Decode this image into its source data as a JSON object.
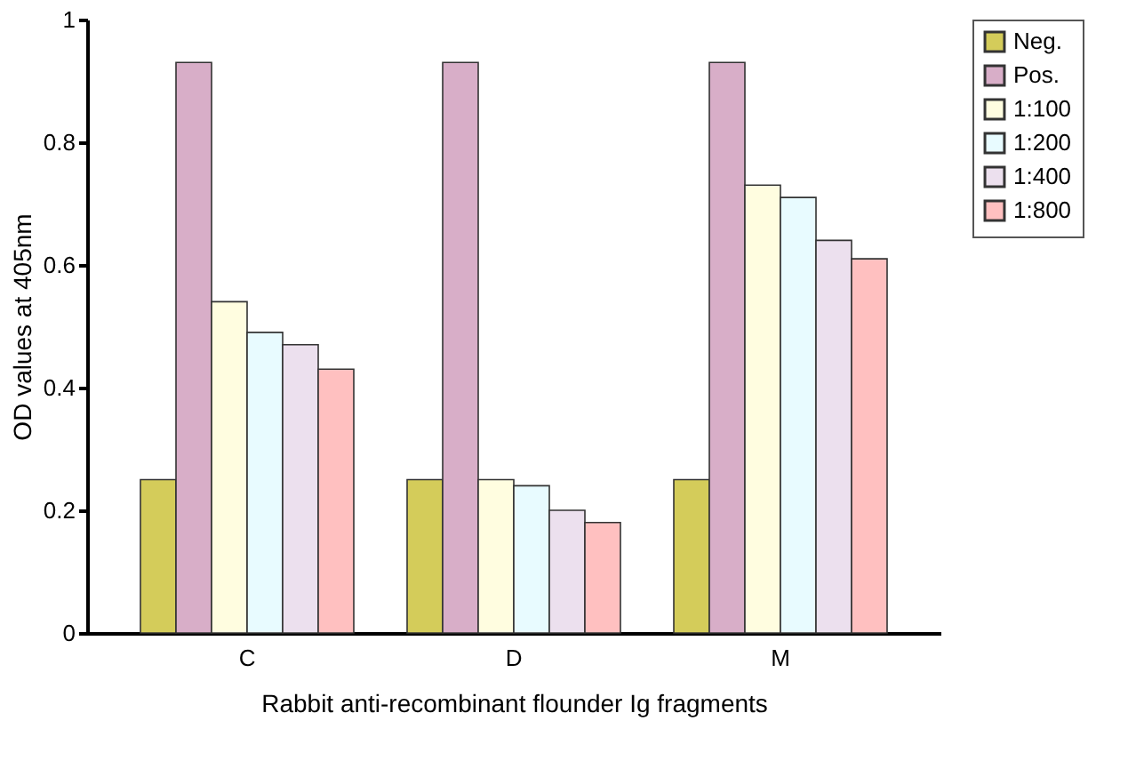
{
  "chart_data": {
    "type": "bar",
    "xlabel": "Rabbit anti-recombinant flounder Ig fragments",
    "ylabel": "OD values at 405nm",
    "categories": [
      "C",
      "D",
      "M"
    ],
    "series": [
      {
        "name": "Neg.",
        "color": "#d4cc5a",
        "values": [
          0.25,
          0.25,
          0.25
        ]
      },
      {
        "name": "Pos.",
        "color": "#d8aec8",
        "values": [
          0.93,
          0.93,
          0.93
        ]
      },
      {
        "name": "1:100",
        "color": "#fffde0",
        "values": [
          0.54,
          0.25,
          0.73
        ]
      },
      {
        "name": "1:200",
        "color": "#e8fbff",
        "values": [
          0.49,
          0.24,
          0.71
        ]
      },
      {
        "name": "1:400",
        "color": "#ece0ee",
        "values": [
          0.47,
          0.2,
          0.64
        ]
      },
      {
        "name": "1:800",
        "color": "#ffc0c0",
        "values": [
          0.43,
          0.18,
          0.61
        ]
      }
    ],
    "ylim": [
      0,
      1
    ],
    "yticks": [
      0,
      0.2,
      0.4,
      0.6,
      0.8,
      1
    ],
    "grid": false,
    "legend": "top right"
  }
}
